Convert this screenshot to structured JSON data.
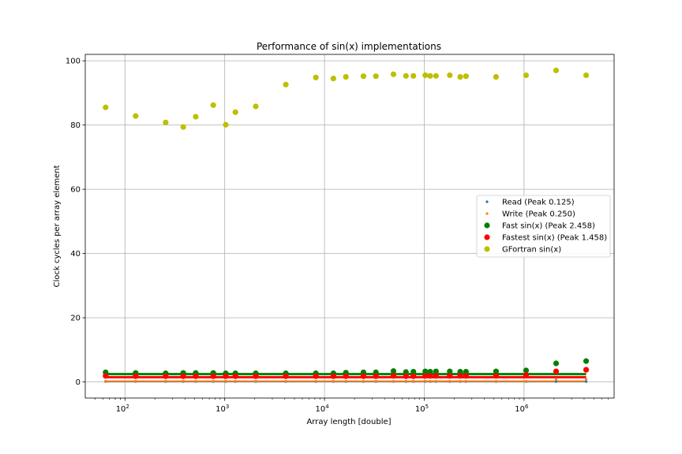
{
  "chart_data": {
    "type": "scatter",
    "title": "Performance of sin(x) implementations",
    "xlabel": "Array length [double]",
    "ylabel": "Clock cycles per array element",
    "xscale": "log",
    "xlim": [
      40,
      8000000
    ],
    "ylim": [
      -5,
      102
    ],
    "yticks": [
      0,
      20,
      40,
      60,
      80,
      100
    ],
    "xticks": [
      {
        "value": 100,
        "base": "10",
        "exp": "2"
      },
      {
        "value": 1000,
        "base": "10",
        "exp": "3"
      },
      {
        "value": 10000,
        "base": "10",
        "exp": "4"
      },
      {
        "value": 100000,
        "base": "10",
        "exp": "5"
      },
      {
        "value": 1000000,
        "base": "10",
        "exp": "6"
      }
    ],
    "grid": true,
    "legend_position": "center-right",
    "x": [
      64,
      128,
      256,
      384,
      512,
      768,
      1024,
      1280,
      2048,
      4096,
      8192,
      12288,
      16384,
      24576,
      32768,
      49152,
      65536,
      77824,
      102400,
      114688,
      131072,
      180224,
      229376,
      262144,
      524288,
      1048576,
      2097152,
      4194304
    ],
    "series": [
      {
        "name": "Read (Peak 0.125)",
        "color": "#1f77b4",
        "marker": "small",
        "peak": 0.125,
        "values": [
          0.13,
          0.13,
          0.13,
          0.13,
          0.13,
          0.13,
          0.13,
          0.13,
          0.13,
          0.13,
          0.13,
          0.13,
          0.13,
          0.13,
          0.13,
          0.13,
          0.13,
          0.13,
          0.13,
          0.13,
          0.13,
          0.13,
          0.13,
          0.13,
          0.13,
          0.13,
          0.13,
          0.13
        ]
      },
      {
        "name": "Write (Peak 0.250)",
        "color": "#ff7f0e",
        "marker": "small",
        "peak": 0.25,
        "values": [
          0.26,
          0.26,
          0.26,
          0.26,
          0.26,
          0.26,
          0.26,
          0.26,
          0.26,
          0.26,
          0.26,
          0.26,
          0.26,
          0.26,
          0.26,
          0.26,
          0.26,
          0.26,
          0.26,
          0.26,
          0.26,
          0.26,
          0.26,
          0.26,
          0.26,
          0.26,
          0.9,
          0.8
        ]
      },
      {
        "name": "Fast sin(x) (Peak 2.458)",
        "color": "#008000",
        "marker": "large",
        "peak": 2.458,
        "values": [
          3.0,
          2.8,
          2.7,
          2.8,
          2.8,
          2.8,
          2.7,
          2.7,
          2.7,
          2.7,
          2.7,
          2.7,
          2.9,
          3.0,
          3.0,
          3.4,
          3.1,
          3.2,
          3.3,
          3.2,
          3.3,
          3.3,
          3.2,
          3.2,
          3.3,
          3.6,
          5.8,
          6.5
        ]
      },
      {
        "name": "Fastest sin(x) (Peak 1.458)",
        "color": "#ff0000",
        "marker": "large",
        "peak": 1.458,
        "values": [
          1.9,
          1.8,
          1.8,
          1.8,
          1.8,
          1.8,
          1.8,
          1.8,
          1.8,
          1.8,
          1.8,
          1.8,
          1.8,
          1.8,
          1.8,
          1.9,
          1.8,
          1.8,
          1.9,
          1.9,
          1.9,
          1.9,
          1.9,
          1.9,
          1.9,
          2.2,
          3.3,
          3.8
        ]
      },
      {
        "name": "GFortran sin(x)",
        "color": "#bfbf00",
        "marker": "large",
        "values": [
          85.5,
          82.8,
          80.8,
          79.4,
          82.6,
          86.2,
          80.1,
          84.0,
          85.8,
          92.6,
          94.8,
          94.5,
          95.0,
          95.2,
          95.2,
          95.8,
          95.3,
          95.3,
          95.5,
          95.3,
          95.3,
          95.5,
          95.0,
          95.2,
          95.0,
          95.5,
          97.0,
          95.5
        ]
      }
    ]
  }
}
